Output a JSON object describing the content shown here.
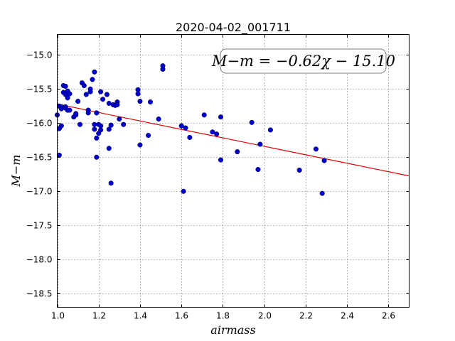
{
  "chart_data": {
    "type": "scatter",
    "title": "2020-04-02_001711",
    "xlabel": "airmass",
    "ylabel": "M−m",
    "xlim": [
      1.0,
      2.7
    ],
    "ylim": [
      -18.7,
      -14.7
    ],
    "y_inverted": true,
    "xticks": [
      1.0,
      1.2,
      1.4,
      1.6,
      1.8,
      2.0,
      2.2,
      2.4,
      2.6
    ],
    "xtick_labels": [
      "1.0",
      "1.2",
      "1.4",
      "1.6",
      "1.8",
      "2.0",
      "2.2",
      "2.4",
      "2.6"
    ],
    "yticks": [
      -15.0,
      -15.5,
      -16.0,
      -16.5,
      -17.0,
      -17.5,
      -18.0,
      -18.5
    ],
    "ytick_labels": [
      "−15.0",
      "−15.5",
      "−16.0",
      "−16.5",
      "−17.0",
      "−17.5",
      "−18.0",
      "−18.5"
    ],
    "grid": true,
    "annotation": "M−m = −0.62χ − 15.10",
    "annotation_position": "top-right",
    "fit_line": {
      "slope": -0.62,
      "intercept": -15.1,
      "color": "#dd0000"
    },
    "marker_color": "#0000cc",
    "points": {
      "x": [
        1.0,
        1.01,
        1.01,
        1.01,
        1.02,
        1.02,
        1.02,
        1.03,
        1.03,
        1.04,
        1.04,
        1.04,
        1.04,
        1.05,
        1.05,
        1.05,
        1.06,
        1.06,
        1.08,
        1.09,
        1.09,
        1.1,
        1.11,
        1.12,
        1.13,
        1.14,
        1.15,
        1.15,
        1.16,
        1.16,
        1.17,
        1.18,
        1.18,
        1.18,
        1.19,
        1.19,
        1.19,
        1.2,
        1.2,
        1.21,
        1.21,
        1.21,
        1.22,
        1.24,
        1.25,
        1.25,
        1.25,
        1.26,
        1.26,
        1.27,
        1.28,
        1.29,
        1.29,
        1.3,
        1.32,
        1.39,
        1.39,
        1.4,
        1.4,
        1.44,
        1.45,
        1.49,
        1.51,
        1.51,
        1.6,
        1.61,
        1.62,
        1.64,
        1.71,
        1.75,
        1.77,
        1.79,
        1.79,
        1.87,
        1.94,
        1.97,
        1.98,
        2.03,
        2.17,
        2.25,
        2.28,
        2.29
      ],
      "y": [
        -15.88,
        -15.75,
        -16.47,
        -16.08,
        -15.76,
        -15.79,
        -16.04,
        -15.45,
        -15.55,
        -15.76,
        -15.78,
        -15.46,
        -15.58,
        -15.81,
        -15.53,
        -15.63,
        -15.81,
        -15.57,
        -15.91,
        -15.86,
        -15.88,
        -15.68,
        -16.02,
        -15.41,
        -15.45,
        -15.58,
        -15.81,
        -15.85,
        -15.5,
        -15.54,
        -15.36,
        -16.02,
        -16.09,
        -15.25,
        -15.85,
        -16.22,
        -16.5,
        -16.02,
        -16.15,
        -16.1,
        -16.04,
        -15.54,
        -15.65,
        -15.58,
        -15.71,
        -16.09,
        -16.37,
        -16.88,
        -16.03,
        -15.73,
        -15.74,
        -15.69,
        -15.73,
        -15.94,
        -16.02,
        -15.51,
        -15.57,
        -16.32,
        -15.68,
        -16.18,
        -15.69,
        -15.94,
        -15.16,
        -15.21,
        -16.04,
        -17.0,
        -16.07,
        -16.21,
        -15.88,
        -16.13,
        -16.16,
        -15.91,
        -16.54,
        -16.42,
        -15.99,
        -16.68,
        -16.31,
        -16.1,
        -16.69,
        -16.38,
        -17.03,
        -16.55
      ]
    }
  }
}
